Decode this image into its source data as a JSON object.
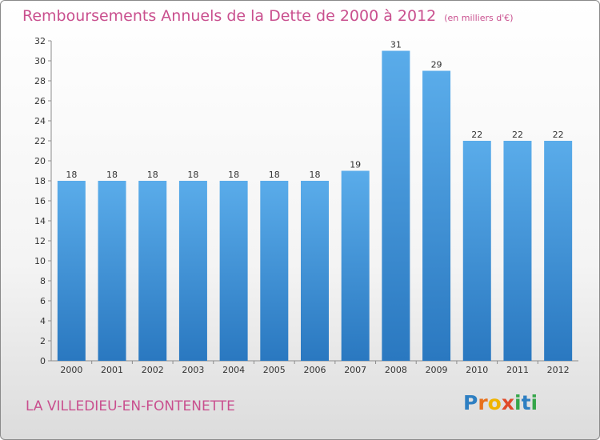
{
  "header": {
    "title": "Remboursements Annuels de la Dette de 2000 à 2012",
    "unit": "(en milliers d'€)"
  },
  "footer": {
    "place": "LA VILLEDIEU-EN-FONTENETTE",
    "logo": "Proxiti"
  },
  "colors": {
    "title": "#c94f8e",
    "bar_top": "#5aacea",
    "bar_bottom": "#2a78c0",
    "logo_letters": [
      "#2e7fc2",
      "#e8711c",
      "#f0b400",
      "#e04a2a",
      "#35a64a",
      "#2e7fc2",
      "#35a64a"
    ]
  },
  "chart_data": {
    "type": "bar",
    "title": "Remboursements Annuels de la Dette de 2000 à 2012",
    "categories": [
      "2000",
      "2001",
      "2002",
      "2003",
      "2004",
      "2005",
      "2006",
      "2007",
      "2008",
      "2009",
      "2010",
      "2011",
      "2012"
    ],
    "values": [
      18,
      18,
      18,
      18,
      18,
      18,
      18,
      19,
      31,
      29,
      22,
      22,
      22
    ],
    "ylim": [
      0,
      32
    ],
    "yticks": [
      0,
      2,
      4,
      6,
      8,
      10,
      12,
      14,
      16,
      18,
      20,
      22,
      24,
      26,
      28,
      30,
      32
    ],
    "grid": false,
    "legend": "none"
  }
}
